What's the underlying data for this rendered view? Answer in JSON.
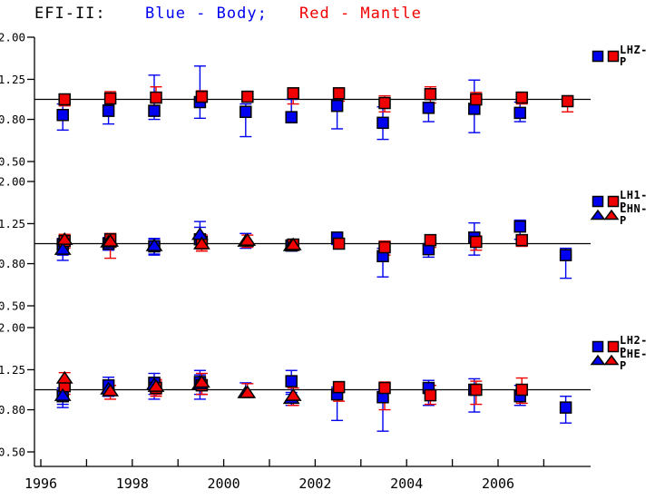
{
  "title": {
    "instrument": "EFI-II:",
    "body_legend": "Blue - Body;",
    "mantle_legend": "Red - Mantle"
  },
  "chart_data": {
    "type": "scatter",
    "title": "EFI-II: Blue - Body; Red - Mantle",
    "colors": {
      "body": "#0000f0",
      "mantle": "#f00000",
      "axis": "#000000"
    },
    "ref_line": 1.0,
    "grid": "off",
    "legend_position": "right",
    "y_axis": {
      "scale": "log",
      "range": [
        0.5,
        2.0
      ],
      "ticks": [
        {
          "value": 2.0,
          "label": "2.00"
        },
        {
          "value": 1.25,
          "label": "1.25"
        },
        {
          "value": 0.8,
          "label": "0.80"
        },
        {
          "value": 0.5,
          "label": "0.50"
        }
      ]
    },
    "x_axis": {
      "range": [
        1995.9,
        2008.0
      ],
      "tick_years": [
        1996,
        1997,
        1998,
        1999,
        2000,
        2001,
        2002,
        2003,
        2004,
        2005,
        2006,
        2007
      ],
      "labels": [
        {
          "year": 1996,
          "text": "1996"
        },
        {
          "year": 1998,
          "text": "1998"
        },
        {
          "year": 2000,
          "text": "2000"
        },
        {
          "year": 2002,
          "text": "2002"
        },
        {
          "year": 2004,
          "text": "2004"
        },
        {
          "year": 2006,
          "text": "2006"
        }
      ]
    },
    "point_format": [
      "year",
      "value",
      "err_lo",
      "err_hi"
    ],
    "panels": [
      {
        "name": "LHZ-P",
        "legend": [
          {
            "marker": "square",
            "label": "LHZ-P"
          }
        ],
        "series": [
          {
            "name": "LHZ-P Body",
            "color": "body",
            "marker": "square",
            "points": [
              [
                1996.5,
                0.84,
                0.71,
                0.95
              ],
              [
                1997.5,
                0.88,
                0.76,
                0.94
              ],
              [
                1998.5,
                0.88,
                0.8,
                1.31
              ],
              [
                1999.5,
                0.97,
                0.81,
                1.45
              ],
              [
                2000.5,
                0.87,
                0.66,
                0.95
              ],
              [
                2001.5,
                0.82,
                0.77,
                1.0
              ],
              [
                2002.5,
                0.93,
                0.72,
                0.99
              ],
              [
                2003.5,
                0.77,
                0.64,
                0.92
              ],
              [
                2004.5,
                0.91,
                0.78,
                0.94
              ],
              [
                2005.5,
                0.9,
                0.69,
                1.24
              ],
              [
                2006.5,
                0.86,
                0.78,
                0.97
              ]
            ]
          },
          {
            "name": "LHZ-P Mantle",
            "color": "mantle",
            "marker": "square",
            "points": [
              [
                1996.5,
                1.0,
                0.93,
                1.05
              ],
              [
                1997.5,
                1.01,
                0.97,
                1.09
              ],
              [
                1998.5,
                1.02,
                0.96,
                1.15
              ],
              [
                1999.5,
                1.03,
                0.97,
                1.1
              ],
              [
                2000.5,
                1.03,
                0.97,
                1.08
              ],
              [
                2001.5,
                1.07,
                0.95,
                1.12
              ],
              [
                2002.5,
                1.07,
                0.98,
                1.12
              ],
              [
                2003.5,
                0.96,
                0.87,
                1.04
              ],
              [
                2004.5,
                1.06,
                0.96,
                1.15
              ],
              [
                2005.5,
                1.0,
                0.94,
                1.08
              ],
              [
                2006.5,
                1.02,
                0.95,
                1.06
              ],
              [
                2007.5,
                0.98,
                0.87,
                1.04
              ]
            ]
          }
        ]
      },
      {
        "name": "LH1-P / LHN-P",
        "legend": [
          {
            "marker": "square",
            "label": "LH1-P"
          },
          {
            "marker": "triangle",
            "label": "LHN-P"
          }
        ],
        "series": [
          {
            "name": "LH1-P Body",
            "color": "body",
            "marker": "square",
            "points": [
              [
                1996.5,
                0.99,
                0.88,
                1.06
              ],
              [
                1997.5,
                1.0,
                0.93,
                1.06
              ],
              [
                1998.5,
                0.97,
                0.88,
                1.06
              ],
              [
                1999.5,
                1.05,
                0.95,
                1.28
              ],
              [
                2001.5,
                0.98,
                0.92,
                1.03
              ],
              [
                2002.5,
                1.07,
                0.99,
                1.12
              ],
              [
                2003.5,
                0.87,
                0.69,
                0.95
              ],
              [
                2004.5,
                0.94,
                0.86,
                1.0
              ],
              [
                2005.5,
                1.07,
                0.88,
                1.26
              ],
              [
                2006.5,
                1.21,
                1.05,
                1.3
              ],
              [
                2007.5,
                0.88,
                0.68,
                0.95
              ]
            ]
          },
          {
            "name": "LH1-P Mantle",
            "color": "mantle",
            "marker": "square",
            "points": [
              [
                1996.5,
                1.03,
                0.95,
                1.1
              ],
              [
                1997.5,
                1.05,
                0.85,
                1.12
              ],
              [
                1999.5,
                1.02,
                0.94,
                1.1
              ],
              [
                2001.5,
                0.99,
                0.94,
                1.04
              ],
              [
                2002.5,
                1.0,
                0.95,
                1.06
              ],
              [
                2003.5,
                0.96,
                0.88,
                1.03
              ],
              [
                2004.5,
                1.04,
                0.96,
                1.1
              ],
              [
                2005.5,
                1.02,
                0.93,
                1.09
              ],
              [
                2006.5,
                1.04,
                0.97,
                1.1
              ]
            ]
          },
          {
            "name": "LHN-P Body",
            "color": "body",
            "marker": "triangle",
            "points": [
              [
                1996.5,
                0.94,
                0.83,
                1.0
              ],
              [
                1997.5,
                1.02,
                0.94,
                1.07
              ],
              [
                1998.5,
                0.98,
                0.89,
                1.05
              ],
              [
                1999.5,
                1.11,
                1.0,
                1.2
              ],
              [
                2000.5,
                1.03,
                0.95,
                1.12
              ],
              [
                2001.5,
                0.98,
                0.93,
                1.03
              ]
            ]
          },
          {
            "name": "LHN-P Mantle",
            "color": "mantle",
            "marker": "triangle",
            "points": [
              [
                1996.5,
                1.05,
                0.97,
                1.11
              ],
              [
                1997.5,
                1.03,
                0.96,
                1.09
              ],
              [
                1999.5,
                1.0,
                0.92,
                1.08
              ],
              [
                2000.5,
                1.04,
                0.96,
                1.1
              ],
              [
                2001.5,
                0.99,
                0.95,
                1.04
              ]
            ]
          }
        ]
      },
      {
        "name": "LH2-P / LHE-P",
        "legend": [
          {
            "marker": "square",
            "label": "LH2-P"
          },
          {
            "marker": "triangle",
            "label": "LHE-P"
          }
        ],
        "series": [
          {
            "name": "LH2-P Body",
            "color": "body",
            "marker": "square",
            "points": [
              [
                1996.5,
                0.93,
                0.82,
                1.02
              ],
              [
                1997.5,
                1.05,
                0.93,
                1.15
              ],
              [
                1998.5,
                1.08,
                0.9,
                1.2
              ],
              [
                1999.5,
                1.09,
                0.9,
                1.24
              ],
              [
                2001.5,
                1.1,
                0.95,
                1.24
              ],
              [
                2002.5,
                0.95,
                0.71,
                1.03
              ],
              [
                2003.5,
                0.92,
                0.63,
                1.0
              ],
              [
                2004.5,
                1.02,
                0.84,
                1.11
              ],
              [
                2005.5,
                1.0,
                0.78,
                1.13
              ],
              [
                2006.5,
                0.93,
                0.84,
                1.05
              ],
              [
                2007.5,
                0.82,
                0.69,
                0.93
              ]
            ]
          },
          {
            "name": "LH2-P Mantle",
            "color": "mantle",
            "marker": "square",
            "points": [
              [
                1996.5,
                1.04,
                0.95,
                1.1
              ],
              [
                1998.5,
                1.02,
                0.93,
                1.1
              ],
              [
                1999.5,
                1.05,
                0.95,
                1.12
              ],
              [
                2002.5,
                1.03,
                0.88,
                1.08
              ],
              [
                2003.5,
                1.02,
                0.8,
                1.09
              ],
              [
                2004.5,
                0.94,
                0.85,
                1.05
              ],
              [
                2005.5,
                1.0,
                0.85,
                1.1
              ],
              [
                2006.5,
                1.0,
                0.86,
                1.14
              ]
            ]
          },
          {
            "name": "LHE-P Body",
            "color": "body",
            "marker": "triangle",
            "points": [
              [
                1996.5,
                0.94,
                0.85,
                1.0
              ],
              [
                1997.5,
                1.01,
                0.93,
                1.08
              ],
              [
                1998.5,
                1.06,
                0.95,
                1.15
              ],
              [
                1999.5,
                1.07,
                0.95,
                1.18
              ],
              [
                2000.5,
                0.97,
                0.92,
                1.08
              ],
              [
                2001.5,
                0.91,
                0.84,
                0.97
              ]
            ]
          },
          {
            "name": "LHE-P Mantle",
            "color": "mantle",
            "marker": "triangle",
            "points": [
              [
                1996.5,
                1.14,
                1.05,
                1.21
              ],
              [
                1997.5,
                0.99,
                0.9,
                1.05
              ],
              [
                1998.5,
                1.04,
                0.95,
                1.12
              ],
              [
                1999.5,
                1.09,
                0.95,
                1.2
              ],
              [
                2000.5,
                0.97,
                0.92,
                1.07
              ],
              [
                2001.5,
                0.94,
                0.84,
                1.02
              ]
            ]
          }
        ]
      }
    ]
  }
}
